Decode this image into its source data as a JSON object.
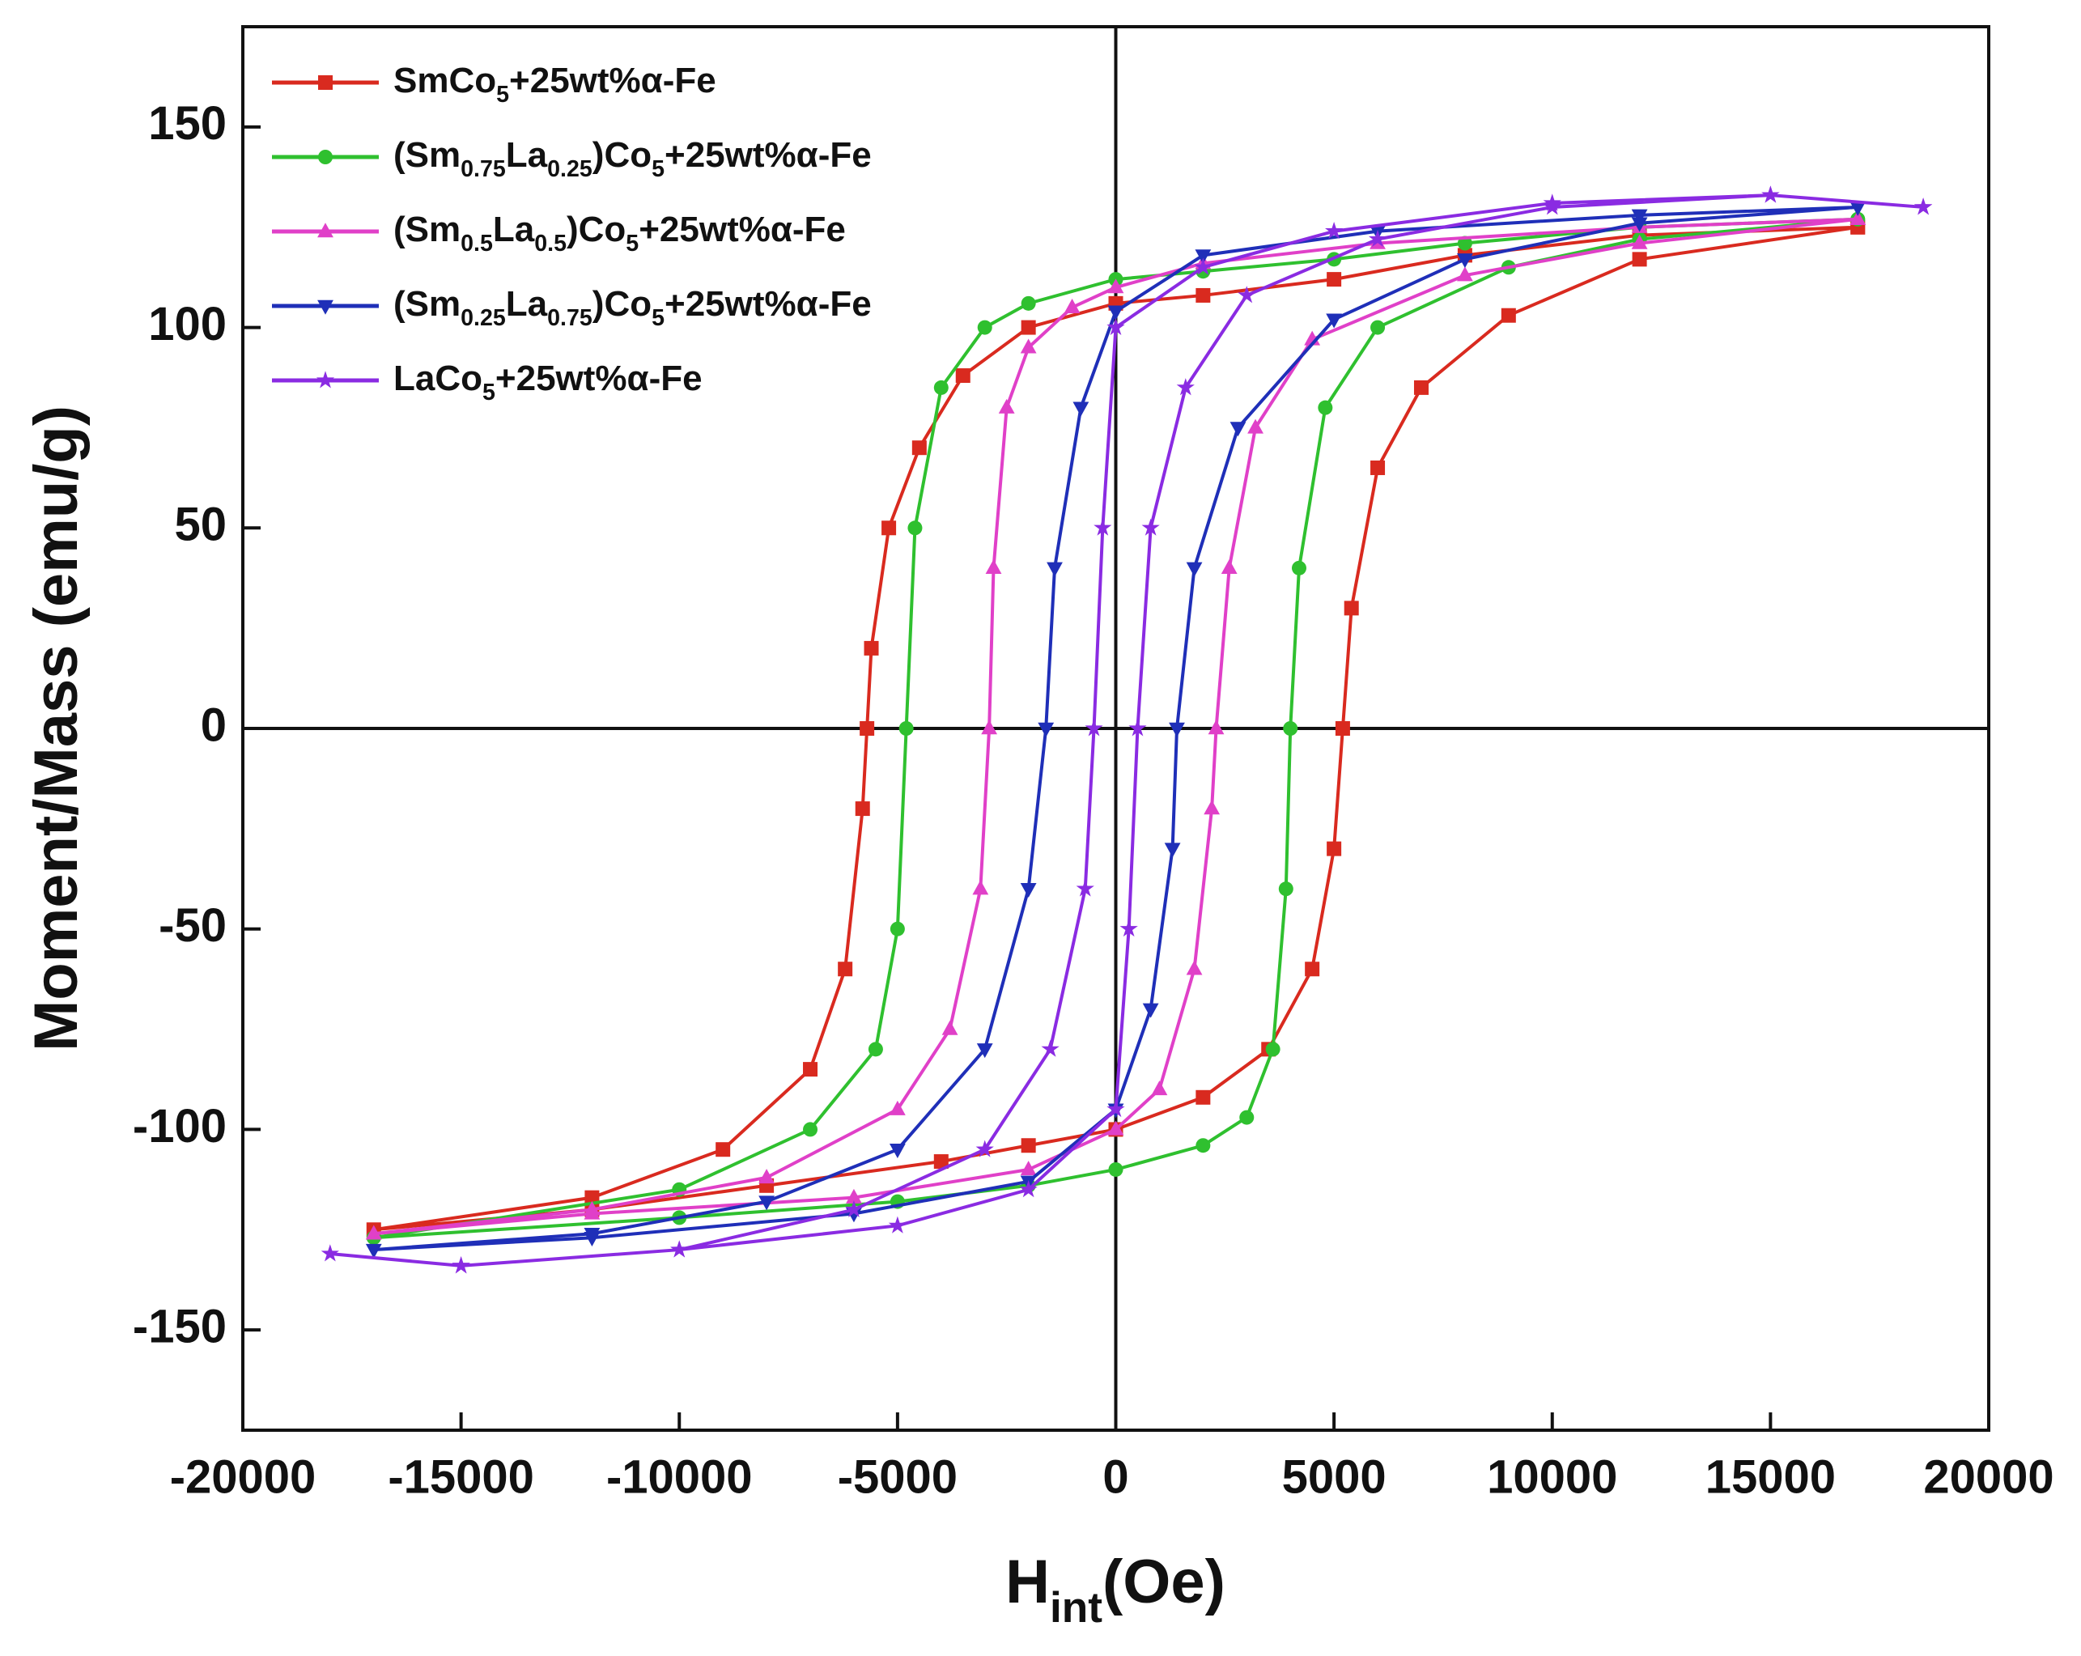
{
  "chart_data": {
    "type": "line",
    "xlabel": "Hint(Oe)",
    "ylabel": "Moment/Mass (emu/g)",
    "xlim": [
      -20000,
      20000
    ],
    "ylim": [
      -175,
      175
    ],
    "xticks": [
      -20000,
      -15000,
      -10000,
      -5000,
      0,
      5000,
      10000,
      15000,
      20000
    ],
    "yticks": [
      -150,
      -100,
      -50,
      0,
      50,
      100,
      150
    ],
    "legend": "upper left",
    "series": [
      {
        "name": "SmCo5+25wt%α-Fe",
        "color": "#d92a1f",
        "marker": "square",
        "x": [
          17000,
          12000,
          8000,
          5000,
          2000,
          0,
          -2000,
          -3500,
          -4500,
          -5200,
          -5600,
          -5700,
          -5800,
          -6200,
          -7000,
          -9000,
          -12000,
          -17000,
          -12000,
          -8000,
          -4000,
          -2000,
          0,
          2000,
          3500,
          4500,
          5000,
          5200,
          5400,
          6000,
          7000,
          9000,
          12000,
          17000
        ],
        "values": [
          125,
          123,
          118,
          112,
          108,
          106,
          100,
          88,
          70,
          50,
          20,
          0,
          -20,
          -60,
          -85,
          -105,
          -117,
          -125,
          -120,
          -114,
          -108,
          -104,
          -100,
          -92,
          -80,
          -60,
          -30,
          0,
          30,
          65,
          85,
          103,
          117,
          125
        ]
      },
      {
        "name": "(Sm0.75La0.25)Co5+25wt%α-Fe",
        "color": "#2fc02f",
        "marker": "circle",
        "x": [
          17000,
          12000,
          8000,
          5000,
          2000,
          0,
          -2000,
          -3000,
          -4000,
          -4600,
          -4800,
          -5000,
          -5500,
          -7000,
          -10000,
          -17000,
          -10000,
          -5000,
          -2000,
          0,
          2000,
          3000,
          3600,
          3900,
          4000,
          4200,
          4800,
          6000,
          9000,
          12000,
          17000
        ],
        "values": [
          127,
          125,
          121,
          117,
          114,
          112,
          106,
          100,
          85,
          50,
          0,
          -50,
          -80,
          -100,
          -115,
          -127,
          -122,
          -118,
          -114,
          -110,
          -104,
          -97,
          -80,
          -40,
          0,
          40,
          80,
          100,
          115,
          122,
          127
        ]
      },
      {
        "name": "(Sm0.5La0.5)Co5+25wt%α-Fe",
        "color": "#e040c8",
        "marker": "triangle-up",
        "x": [
          17000,
          12000,
          6000,
          2000,
          0,
          -1000,
          -2000,
          -2500,
          -2800,
          -2900,
          -3100,
          -3800,
          -5000,
          -8000,
          -12000,
          -17000,
          -12000,
          -6000,
          -2000,
          0,
          1000,
          1800,
          2200,
          2300,
          2600,
          3200,
          4500,
          8000,
          12000,
          17000
        ],
        "values": [
          127,
          125,
          121,
          116,
          110,
          105,
          95,
          80,
          40,
          0,
          -40,
          -75,
          -95,
          -112,
          -120,
          -126,
          -121,
          -117,
          -110,
          -100,
          -90,
          -60,
          -20,
          0,
          40,
          75,
          97,
          113,
          121,
          127
        ]
      },
      {
        "name": "(Sm0.25La0.75)Co5+25wt%α-Fe",
        "color": "#1f2fb8",
        "marker": "triangle-down",
        "x": [
          17000,
          12000,
          6000,
          2000,
          0,
          -800,
          -1400,
          -1600,
          -2000,
          -3000,
          -5000,
          -8000,
          -12000,
          -17000,
          -12000,
          -6000,
          -2000,
          0,
          800,
          1300,
          1400,
          1800,
          2800,
          5000,
          8000,
          12000,
          17000
        ],
        "values": [
          130,
          128,
          124,
          118,
          104,
          80,
          40,
          0,
          -40,
          -80,
          -105,
          -118,
          -126,
          -130,
          -127,
          -121,
          -113,
          -95,
          -70,
          -30,
          0,
          40,
          75,
          102,
          117,
          126,
          130
        ]
      },
      {
        "name": "LaCo5+25wt%α-Fe",
        "color": "#8a2be2",
        "marker": "star",
        "x": [
          18500,
          15000,
          10000,
          5000,
          2000,
          0,
          -300,
          -500,
          -700,
          -1500,
          -3000,
          -6000,
          -10000,
          -15000,
          -18000,
          -15000,
          -10000,
          -5000,
          -2000,
          0,
          300,
          500,
          800,
          1600,
          3000,
          6000,
          10000,
          15000,
          18500
        ],
        "values": [
          130,
          133,
          131,
          124,
          115,
          100,
          50,
          0,
          -40,
          -80,
          -105,
          -120,
          -130,
          -134,
          -131,
          -134,
          -130,
          -124,
          -115,
          -95,
          -50,
          0,
          50,
          85,
          108,
          122,
          130,
          133,
          130
        ]
      }
    ]
  }
}
